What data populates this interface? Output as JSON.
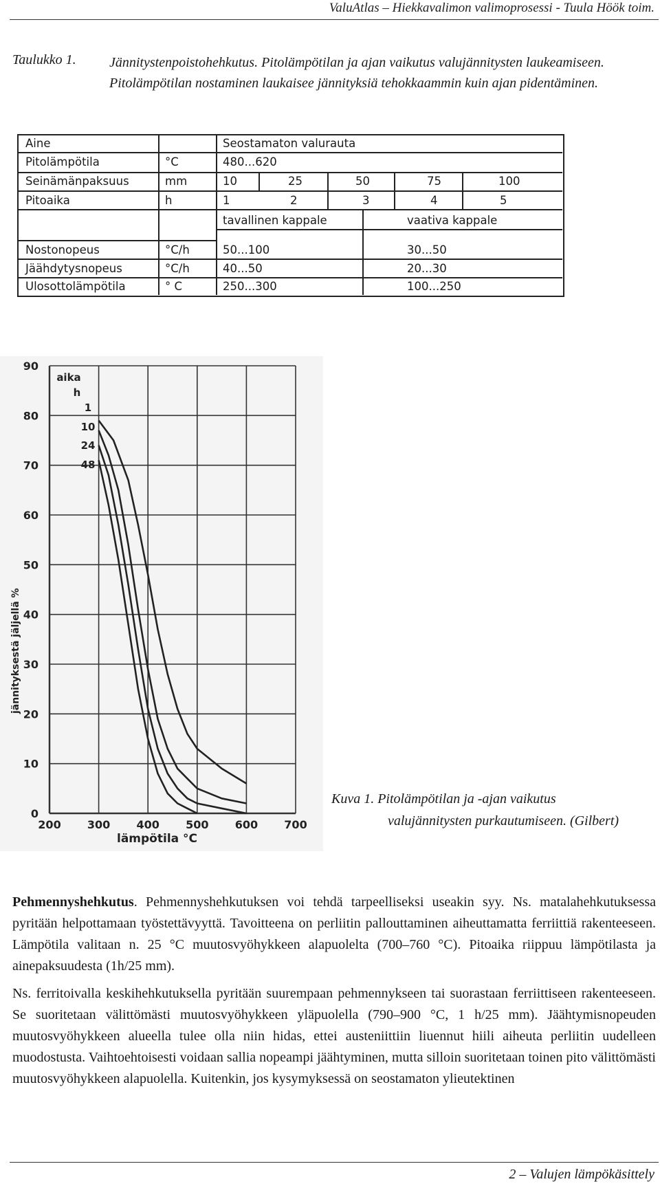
{
  "header": {
    "running_title": "ValuAtlas – Hiekkavalimon valimoprosessi - Tuula Höök toim."
  },
  "caption": {
    "label": "Taulukko 1.",
    "text": "Jännitystenpoistohehkutus. Pitolämpötilan ja ajan vaikutus valujännitysten laukeamiseen. Pitolämpötilan nostaminen laukaisee jännityksiä tehokkaammin kuin ajan pidentäminen."
  },
  "table": {
    "rows": [
      {
        "label": "Aine",
        "unit": "",
        "value": "Seostamaton valurauta"
      },
      {
        "label": "Pitolämpötila",
        "unit": "°C",
        "value": "480...620"
      },
      {
        "label": "Seinämänpaksuus",
        "unit": "mm",
        "values": [
          "10",
          "25",
          "50",
          "75",
          "100"
        ]
      },
      {
        "label": "Pitoaika",
        "unit": "h",
        "values": [
          "1",
          "2",
          "3",
          "4",
          "5"
        ]
      },
      {
        "label": "",
        "unit": "",
        "headers": [
          "tavallinen kappale",
          "vaativa kappale"
        ]
      },
      {
        "label": "Nostonopeus",
        "unit": "°C/h",
        "values": [
          "50...100",
          "30...50"
        ]
      },
      {
        "label": "Jäähdytysnopeus",
        "unit": "°C/h",
        "values": [
          "40...50",
          "20...30"
        ]
      },
      {
        "label": "Ulosottolämpötila",
        "unit": "° C",
        "values": [
          "250...300",
          "100...250"
        ]
      }
    ]
  },
  "chart_data": {
    "type": "line",
    "title": "",
    "xlabel": "lämpötila °C",
    "ylabel": "jännityksestä jäljellä %",
    "legend_title": "aika h",
    "xlim": [
      200,
      700
    ],
    "ylim": [
      0,
      90
    ],
    "x_ticks": [
      200,
      300,
      400,
      500,
      600,
      700
    ],
    "y_ticks": [
      0,
      10,
      20,
      30,
      40,
      50,
      60,
      70,
      80,
      90
    ],
    "grid": true,
    "series": [
      {
        "name": "1",
        "x": [
          300,
          330,
          360,
          380,
          400,
          420,
          440,
          460,
          480,
          500,
          550,
          600
        ],
        "y": [
          79,
          75,
          67,
          58,
          48,
          37,
          28,
          21,
          16,
          13,
          9,
          6
        ]
      },
      {
        "name": "10",
        "x": [
          300,
          320,
          340,
          360,
          380,
          400,
          420,
          440,
          460,
          480,
          500,
          550,
          600
        ],
        "y": [
          77,
          72,
          65,
          54,
          41,
          29,
          19,
          13,
          9,
          7,
          5,
          3,
          2
        ]
      },
      {
        "name": "24",
        "x": [
          300,
          320,
          340,
          360,
          380,
          400,
          420,
          440,
          460,
          480,
          500,
          550,
          600
        ],
        "y": [
          74,
          68,
          58,
          46,
          33,
          21,
          13,
          8,
          5,
          3,
          2,
          1,
          0
        ]
      },
      {
        "name": "48",
        "x": [
          300,
          320,
          340,
          360,
          380,
          400,
          420,
          440,
          460,
          480,
          500
        ],
        "y": [
          71,
          62,
          51,
          38,
          25,
          15,
          8,
          4,
          2,
          1,
          0
        ]
      }
    ]
  },
  "figure_caption": {
    "line1": "Kuva 1.  Pitolämpötilan ja -ajan vaikutus",
    "line2": "valujännitysten purkautumiseen. (Gilbert)"
  },
  "body": {
    "p1_bold": "Pehmennyshehkutus",
    "p1_rest": ". Pehmennyshehkutuksen voi tehdä tarpeelliseksi useakin syy. Ns. matalahehkutuksessa pyritään helpottamaan työstettävyyttä. Tavoitteena on perliitin pallouttaminen aiheuttamatta ferriittiä rakenteeseen. Lämpötila valitaan n. 25 °C muutosvyöhykkeen alapuolelta (700–760 °C). Pitoaika riippuu lämpötilasta ja ainepaksuudesta (1h/25 mm).",
    "p2": "Ns. ferritoivalla keskihehkutuksella pyritään suurempaan pehmennykseen tai suorastaan ferriittiseen rakenteeseen. Se suoritetaan välittömästi muutosvyöhykkeen yläpuolella (790–900 °C, 1 h/25 mm). Jäähtymisnopeuden muutosvyöhykkeen alueella tulee olla niin hidas, ettei austeniittiin liuennut hiili aiheuta perliitin uudelleen muodostusta. Vaihtoehtoisesti voidaan sallia nopeampi jäähtyminen, mutta silloin suoritetaan toinen pito välittömästi muutosvyöhykkeen alapuolella. Kuitenkin, jos kysymyksessä on seostamaton ylieutektinen"
  },
  "footer": {
    "page_label": "2 – Valujen lämpökäsittely"
  }
}
